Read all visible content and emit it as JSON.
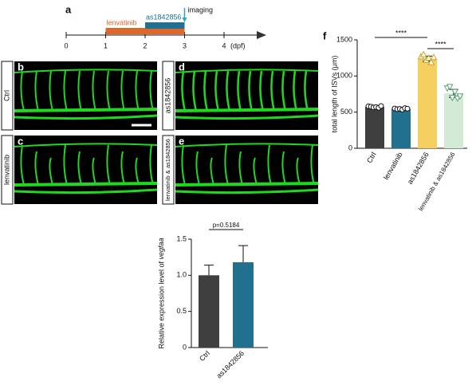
{
  "panel_labels": [
    "a",
    "b",
    "c",
    "d",
    "e",
    "f"
  ],
  "timeline": {
    "ticks": [
      0,
      1,
      2,
      3,
      4
    ],
    "unit": "(dpf)",
    "treatments": [
      {
        "name": "lenvatinib",
        "color": "#e0662a",
        "range": [
          1,
          3
        ]
      },
      {
        "name": "as1842856",
        "color": "#21708f",
        "range": [
          2,
          3
        ]
      }
    ],
    "event": {
      "name": "imaging",
      "at": 3
    }
  },
  "images": [
    {
      "label": "Ctrl"
    },
    {
      "label": "lenvatinib"
    },
    {
      "label": "as1842856"
    },
    {
      "label": "lenvatinib & as1842856"
    }
  ],
  "chart_data": [
    {
      "type": "bar",
      "ylabel": "total length of ISVs (μm)",
      "categories": [
        "Ctrl",
        "lenvatinib",
        "as1842856",
        "lenvatinib & as1842856"
      ],
      "values": [
        570,
        545,
        1240,
        760
      ],
      "errors": [
        12,
        10,
        35,
        55
      ],
      "colors": [
        "#3f3f3f",
        "#21708f",
        "#f5d060",
        "#d3ead7"
      ],
      "points": [
        [
          580,
          575,
          565,
          570,
          560,
          585
        ],
        [
          550,
          540,
          545,
          535,
          555,
          548
        ],
        [
          1270,
          1300,
          1220,
          1250,
          1190,
          1260
        ],
        [
          830,
          850,
          700,
          780,
          690,
          720
        ]
      ],
      "ylim": [
        0,
        1500
      ],
      "yticks": [
        0,
        500,
        1000,
        1500
      ],
      "annotations": [
        "****",
        "****"
      ]
    },
    {
      "type": "bar",
      "ylabel": "Relative expression level of ",
      "ylabel_italic": "vegfaa",
      "categories": [
        "Ctrl",
        "as1842856"
      ],
      "values": [
        1.0,
        1.18
      ],
      "errors": [
        0.14,
        0.23
      ],
      "colors": [
        "#3f3f3f",
        "#21708f"
      ],
      "ylim": [
        0,
        1.5
      ],
      "yticks": [
        0,
        0.5,
        {
          "value": 1,
          "label": "1.0"
        },
        1.5
      ],
      "annotations": [
        "p=0.5184"
      ]
    }
  ]
}
